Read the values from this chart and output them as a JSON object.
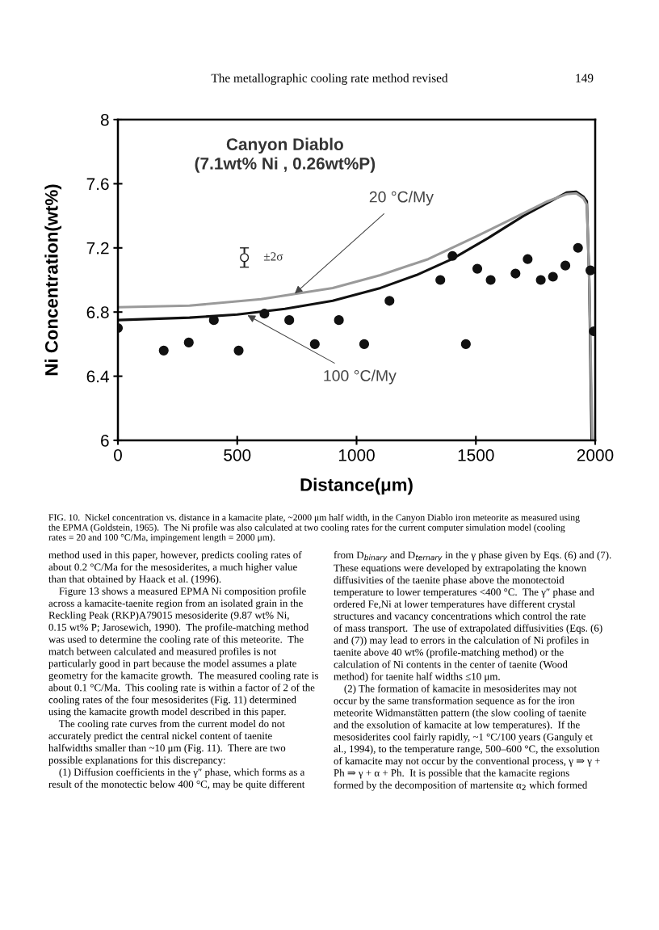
{
  "chart_data": {
    "type": "scatter",
    "title": "Canyon Diablo",
    "subtitle": "(7.1wt% Ni , 0.26wt%P)",
    "xlabel": "Distance(μm)",
    "ylabel": "Ni Concentration(wt%)",
    "xlim": [
      0,
      2000
    ],
    "xticks": [
      0,
      500,
      1000,
      1500,
      2000
    ],
    "ylim": [
      6,
      8
    ],
    "yticks": [
      6,
      6.4,
      6.8,
      7.2,
      7.6,
      8
    ],
    "series": [
      {
        "marker": "circle",
        "color": "#111111",
        "x": [
          0,
          192,
          297,
          402,
          506,
          614,
          718,
          825,
          926,
          1032,
          1138,
          1351,
          1402,
          1458,
          1506,
          1562,
          1666,
          1717,
          1772,
          1823,
          1875,
          1928,
          1980,
          1994
        ],
        "values": [
          6.7,
          6.56,
          6.61,
          6.75,
          6.56,
          6.79,
          6.75,
          6.6,
          6.75,
          6.6,
          6.87,
          7.0,
          7.15,
          6.6,
          7.07,
          7.0,
          7.04,
          7.13,
          7.0,
          7.02,
          7.09,
          7.2,
          7.06,
          6.68
        ]
      },
      {
        "type": "line",
        "color": "#111111",
        "x": [
          0,
          100,
          300,
          500,
          700,
          900,
          1100,
          1250,
          1400,
          1550,
          1700,
          1800,
          1880,
          1920,
          1950,
          1965,
          1975,
          1985
        ],
        "values": [
          6.75,
          6.755,
          6.765,
          6.785,
          6.82,
          6.87,
          6.95,
          7.03,
          7.13,
          7.26,
          7.4,
          7.48,
          7.545,
          7.55,
          7.52,
          7.49,
          7.0,
          6.0
        ]
      },
      {
        "type": "line",
        "color": "#9a9a9a",
        "x": [
          0,
          300,
          600,
          900,
          1100,
          1300,
          1500,
          1650,
          1800,
          1880,
          1920,
          1950,
          1965,
          1975,
          1988
        ],
        "values": [
          6.83,
          6.84,
          6.88,
          6.95,
          7.03,
          7.13,
          7.27,
          7.38,
          7.49,
          7.535,
          7.54,
          7.51,
          7.47,
          7.0,
          6.0
        ]
      }
    ],
    "annotations": [
      "The metallographic cooling rate method revised",
      "149",
      "±2σ",
      "FIG. 10.  Nickel concentration vs. distance in a kamacite plate, ~2000 μm half width, in the Canyon Diablo iron meteorite as measured using\nthe EPMA (Goldstein, 1965).  The Ni profile was also calculated at two cooling rates for the current computer simulation model (cooling\nrates = 20 and 100 °C/Ma, impingement length = 2000 μm).",
      "method used in this paper, however, predicts cooling rates of\nabout 0.2 °C/Ma for the mesosiderites, a much higher value\nthan that obtained by Haack et al. (1996).\n    Figure 13 shows a measured EPMA Ni composition profile\nacross a kamacite-taenite region from an isolated grain in the\nReckling Peak (RKP)A79015 mesosiderite (9.87 wt% Ni,\n0.15 wt% P; Jarosewich, 1990).  The profile-matching method\nwas used to determine the cooling rate of this meteorite.  The\nmatch between calculated and measured profiles is not\nparticularly good in part because the model assumes a plate\ngeometry for the kamacite growth.  The measured cooling rate is\nabout 0.1 °C/Ma.  This cooling rate is within a factor of 2 of the\ncooling rates of the four mesosiderites (Fig. 11) determined\nusing the kamacite growth model described in this paper.\n    The cooling rate curves from the current model do not\naccurately predict the central nickel content of taenite\nhalfwidths smaller than ~10 μm (Fig. 11).  There are two\npossible explanations for this discrepancy:\n    (1) Diffusion coefficients in the γ″ phase, which forms as a\nresult of the monotectic below 400 °C, may be quite different",
      "from D$_{binary}$ and D$_{ternary}$ in the γ phase given by Eqs. (6) and (7).\nThese equations were developed by extrapolating the known\ndiffusivities of the taenite phase above the monotectoid\ntemperature to lower temperatures <400 °C.  The γ″ phase and\nordered Fe,Ni at lower temperatures have different crystal\nstructures and vacancy concentrations which control the rate\nof mass transport.  The use of extrapolated diffusivities (Eqs. (6)\nand (7)) may lead to errors in the calculation of Ni profiles in\ntaenite above 40 wt% (profile-matching method) or the\ncalculation of Ni contents in the center of taenite (Wood\nmethod) for taenite half widths ≤10 μm.\n    (2) The formation of kamacite in mesosiderites may not\noccur by the same transformation sequence as for the iron\nmeteorite Widmanstätten pattern (the slow cooling of taenite\nand the exsolution of kamacite at low temperatures).  If the\nmesosiderites cool fairly rapidly, ~1 °C/100 years (Ganguly et\nal., 1994), to the temperature range, 500–600 °C, the exsolution\nof kamacite may not occur by the conventional process, γ ⇒ γ +\nPh ⇒ γ + α + Ph.  It is possible that the kamacite regions\nformed by the decomposition of martensite α$_{2}$ which formed",
      {
        "text": "20 °C/My",
        "x": 741,
        "y": 6.915
      },
      {
        "text": "100 °C/My",
        "x": 543,
        "y": 6.78
      }
    ]
  }
}
